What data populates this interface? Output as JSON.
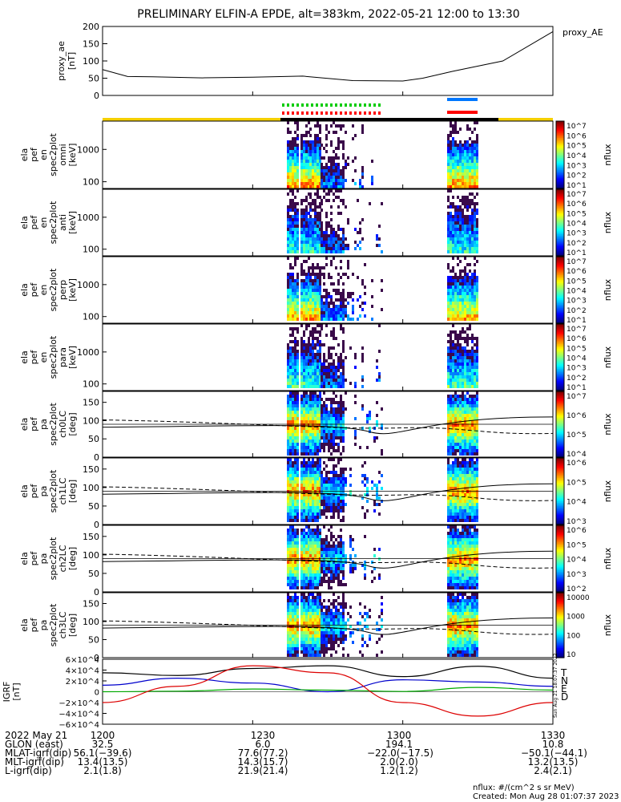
{
  "title": "PRELIMINARY ELFIN-A EPDE, alt=383km, 2022-05-21 12:00 to 13:30",
  "created": "Created: Mon Aug 28 01:07:37 2023",
  "nflux_units": "nflux: #/(cm^2 s sr MeV)",
  "side_stamp": "Sun Aug 21 18:07:37 2022",
  "colors": {
    "lc": "#ff0000",
    "alc": "#00cc00",
    "sci_bar": "#f5d000",
    "fgm": "#0077ff"
  },
  "chart_data": [
    {
      "type": "line",
      "panel": "proxy_ae",
      "ylabel": [
        "proxy_ae",
        "[nT]"
      ],
      "legend": "proxy_AE",
      "ylim": [
        0,
        200
      ],
      "yticks": [
        "200",
        "150",
        "100",
        "50",
        "0"
      ],
      "x": [
        0,
        5,
        10,
        20,
        30,
        40,
        50,
        60,
        64,
        70,
        80,
        90
      ],
      "values": [
        75,
        55,
        54,
        51,
        53,
        56,
        43,
        42,
        50,
        70,
        100,
        185
      ]
    },
    {
      "type": "heatmap",
      "panel": "omni",
      "ylabel": [
        "ela",
        "pef",
        "en",
        "spec2plot",
        "omni",
        "[keV]"
      ],
      "yticks": [
        "1000",
        "100"
      ],
      "colorbar": {
        "label": "nflux",
        "ticks": [
          "10^7",
          "10^6",
          "10^5",
          "10^4",
          "10^3",
          "10^2",
          "10^1"
        ]
      }
    },
    {
      "type": "heatmap",
      "panel": "anti",
      "ylabel": [
        "ela",
        "pef",
        "en",
        "spec2plot",
        "anti",
        "[keV]"
      ],
      "yticks": [
        "1000",
        "100"
      ],
      "colorbar": {
        "label": "nflux",
        "ticks": [
          "10^7",
          "10^6",
          "10^5",
          "10^4",
          "10^3",
          "10^2",
          "10^1"
        ]
      }
    },
    {
      "type": "heatmap",
      "panel": "perp",
      "ylabel": [
        "ela",
        "pef",
        "en",
        "spec2plot",
        "perp",
        "[keV]"
      ],
      "yticks": [
        "1000",
        "100"
      ],
      "colorbar": {
        "label": "nflux",
        "ticks": [
          "10^7",
          "10^6",
          "10^5",
          "10^4",
          "10^3",
          "10^2",
          "10^1"
        ]
      }
    },
    {
      "type": "heatmap",
      "panel": "para",
      "ylabel": [
        "ela",
        "pef",
        "en",
        "spec2plot",
        "para",
        "[keV]"
      ],
      "yticks": [
        "1000",
        "100"
      ],
      "colorbar": {
        "label": "nflux",
        "ticks": [
          "10^7",
          "10^6",
          "10^5",
          "10^4",
          "10^3",
          "10^2",
          "10^1"
        ]
      }
    },
    {
      "type": "heatmap",
      "panel": "ch0LC",
      "ylabel": [
        "ela",
        "pef",
        "pa",
        "spec2plot",
        "ch0LC",
        "[deg]"
      ],
      "yticks": [
        "150",
        "100",
        "50",
        "0"
      ],
      "colorbar": {
        "label": "nflux",
        "ticks": [
          "10^7",
          "10^6",
          "10^5",
          "10^4"
        ]
      }
    },
    {
      "type": "heatmap",
      "panel": "ch1LC",
      "ylabel": [
        "ela",
        "pef",
        "pa",
        "spec2plot",
        "ch1LC",
        "[deg]"
      ],
      "yticks": [
        "150",
        "100",
        "50",
        "0"
      ],
      "colorbar": {
        "label": "nflux",
        "ticks": [
          "10^6",
          "10^5",
          "10^4",
          "10^3"
        ]
      }
    },
    {
      "type": "heatmap",
      "panel": "ch2LC",
      "ylabel": [
        "ela",
        "pef",
        "pa",
        "spec2plot",
        "ch2LC",
        "[deg]"
      ],
      "yticks": [
        "150",
        "100",
        "50",
        "0"
      ],
      "colorbar": {
        "label": "nflux",
        "ticks": [
          "10^6",
          "10^5",
          "10^4",
          "10^3",
          "10^2"
        ]
      }
    },
    {
      "type": "heatmap",
      "panel": "ch3LC",
      "ylabel": [
        "ela",
        "pef",
        "pa",
        "spec2plot",
        "ch3LC",
        "[deg]"
      ],
      "yticks": [
        "150",
        "100",
        "50",
        "0"
      ],
      "colorbar": {
        "label": "nflux",
        "ticks": [
          "10000",
          "1000",
          "100",
          "10"
        ]
      }
    },
    {
      "type": "line",
      "panel": "IGRF",
      "ylabel": [
        "IGRF",
        "[nT]"
      ],
      "yticks": [
        "6×10^4",
        "4×10^4",
        "2×10^4",
        "0",
        "−2×10^4",
        "−4×10^4",
        "−6×10^4"
      ],
      "ylim": [
        -60000,
        60000
      ],
      "legend": [
        "T",
        "N",
        "E",
        "D"
      ],
      "series": [
        {
          "name": "T",
          "color": "#000000",
          "x": [
            0,
            15,
            30,
            45,
            60,
            75,
            90
          ],
          "values": [
            35000,
            30000,
            43000,
            48000,
            28000,
            47000,
            25000
          ]
        },
        {
          "name": "N",
          "color": "#0000cc",
          "x": [
            0,
            15,
            30,
            45,
            60,
            75,
            90
          ],
          "values": [
            12000,
            25000,
            16000,
            0,
            22000,
            18000,
            10000
          ]
        },
        {
          "name": "E",
          "color": "#00aa00",
          "x": [
            0,
            15,
            30,
            45,
            60,
            75,
            90
          ],
          "values": [
            0,
            1000,
            5000,
            3000,
            500,
            8000,
            3000
          ]
        },
        {
          "name": "D",
          "color": "#dd0000",
          "x": [
            0,
            15,
            30,
            45,
            60,
            75,
            90
          ],
          "values": [
            -20000,
            10000,
            48000,
            35000,
            -20000,
            -45000,
            -20000
          ]
        }
      ]
    }
  ],
  "xaxis": {
    "date": "2022 May 21",
    "rows": [
      {
        "label": "",
        "values": [
          "1200",
          "1230",
          "1300",
          "1330"
        ]
      },
      {
        "label": "GLON (east)",
        "values": [
          "32.5",
          "6.0",
          "194.1",
          "10.8"
        ]
      },
      {
        "label": "MLAT-igrf(dip)",
        "values": [
          "56.1(−39.6)",
          "77.6(77.2)",
          "−22.0(−17.5)",
          "−50.1(−44.1)"
        ]
      },
      {
        "label": "MLT-igrf(dip)",
        "values": [
          "13.4(13.5)",
          "14.3(15.7)",
          "2.0(2.0)",
          "13.2(13.5)"
        ]
      },
      {
        "label": "L-igrf(dip)",
        "values": [
          "2.1(1.8)",
          "21.9(21.4)",
          "1.2(1.2)",
          "2.4(2.1)"
        ]
      }
    ]
  }
}
